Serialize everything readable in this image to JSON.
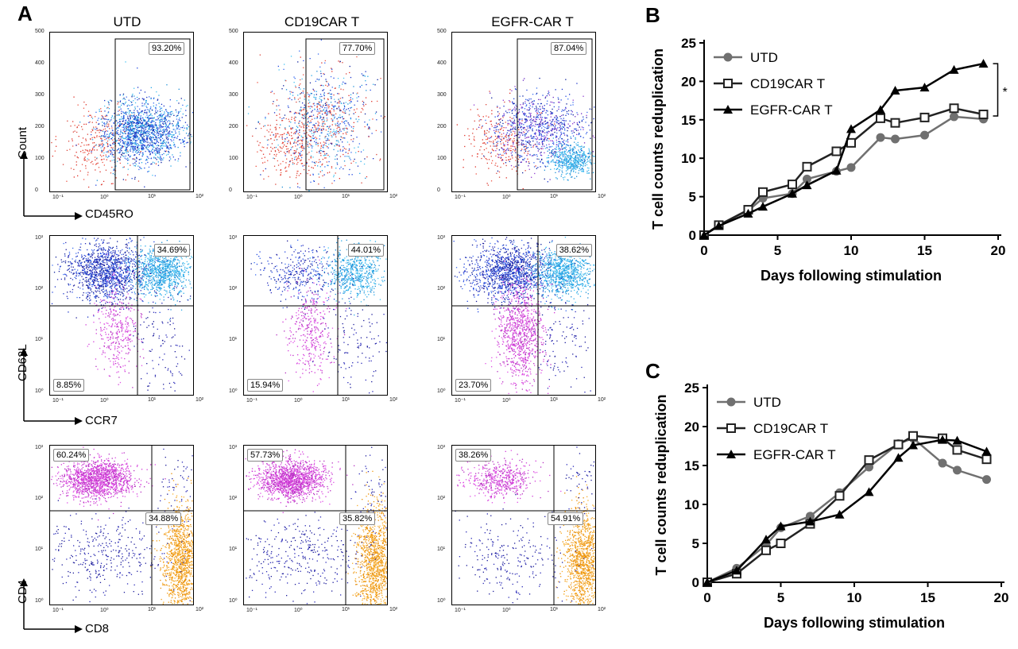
{
  "panel_labels": [
    "A",
    "B",
    "C"
  ],
  "flow": {
    "columns": [
      "UTD",
      "CD19CAR T",
      "EGFR-CAR T"
    ],
    "rows": [
      {
        "id": "cd45ro",
        "x_axis": "CD45RO",
        "y_axis": "Count",
        "type": "gate",
        "pcts": [
          [
            "93.20%"
          ],
          [
            "77.70%"
          ],
          [
            "87.04%"
          ]
        ],
        "yticks": [
          "500",
          "400",
          "300",
          "200",
          "100",
          "0"
        ],
        "xticks": [
          "10⁻¹",
          "10⁰",
          "10¹",
          "10²"
        ]
      },
      {
        "id": "ccr7",
        "x_axis": "CCR7",
        "y_axis": "CD62L",
        "type": "quad",
        "pcts": [
          [
            "34.69%",
            "8.85%"
          ],
          [
            "44.01%",
            "15.94%"
          ],
          [
            "38.62%",
            "23.70%"
          ]
        ],
        "yticks": [
          "10³",
          "10²",
          "10¹",
          "10⁰"
        ],
        "xticks": [
          "10⁻¹",
          "10⁰",
          "10¹",
          "10²"
        ]
      },
      {
        "id": "cd4cd8",
        "x_axis": "CD8",
        "y_axis": "CD4",
        "type": "quad2",
        "pcts": [
          [
            "60.24%",
            "34.88%"
          ],
          [
            "57.73%",
            "35.82%"
          ],
          [
            "38.26%",
            "54.91%"
          ]
        ],
        "yticks": [
          "10³",
          "10²",
          "10¹",
          "10⁰"
        ],
        "xticks": [
          "10⁻¹",
          "10⁰",
          "10¹",
          "10²"
        ]
      }
    ]
  },
  "chart_data": [
    {
      "panel": "B",
      "type": "line",
      "xlabel": "Days following stimulation",
      "ylabel": "T cell counts reduplication",
      "xlim": [
        0,
        20
      ],
      "ylim": [
        0,
        25
      ],
      "xticks": [
        0,
        5,
        10,
        15,
        20
      ],
      "yticks": [
        0,
        5,
        10,
        15,
        20,
        25
      ],
      "annotation": "*",
      "legend_position": "top-left",
      "series": [
        {
          "name": "UTD",
          "marker": "circle",
          "color": "#707070",
          "x": [
            0,
            1,
            3,
            4,
            6,
            7,
            9,
            10,
            12,
            13,
            15,
            17,
            19
          ],
          "y": [
            0,
            1.3,
            3.2,
            4.8,
            5.4,
            7.3,
            8.3,
            8.8,
            12.7,
            12.5,
            13.0,
            15.4,
            15.1
          ]
        },
        {
          "name": "CD19CAR T",
          "marker": "square",
          "color": "#222222",
          "x": [
            0,
            1,
            3,
            4,
            6,
            7,
            9,
            10,
            12,
            13,
            15,
            17,
            19
          ],
          "y": [
            0,
            1.3,
            3.3,
            5.6,
            6.6,
            8.9,
            10.9,
            12.0,
            15.2,
            14.6,
            15.3,
            16.5,
            15.7
          ]
        },
        {
          "name": "EGFR-CAR T",
          "marker": "triangle",
          "color": "#000000",
          "x": [
            0,
            1,
            3,
            4,
            6,
            7,
            9,
            10,
            12,
            13,
            15,
            17,
            19
          ],
          "y": [
            0,
            1.2,
            2.8,
            3.7,
            5.4,
            6.5,
            8.4,
            13.8,
            16.3,
            18.8,
            19.2,
            21.5,
            22.3
          ]
        }
      ]
    },
    {
      "panel": "C",
      "type": "line",
      "xlabel": "Days following stimulation",
      "ylabel": "T cell counts reduplication",
      "xlim": [
        0,
        20
      ],
      "ylim": [
        0,
        25
      ],
      "xticks": [
        0,
        5,
        10,
        15,
        20
      ],
      "yticks": [
        0,
        5,
        10,
        15,
        20,
        25
      ],
      "legend_position": "top-left",
      "series": [
        {
          "name": "UTD",
          "marker": "circle",
          "color": "#707070",
          "x": [
            0,
            2,
            4,
            5,
            7,
            9,
            11,
            13,
            14,
            16,
            17,
            19
          ],
          "y": [
            0,
            1.8,
            4.8,
            7.0,
            8.5,
            11.5,
            14.8,
            17.8,
            18.5,
            15.3,
            14.4,
            13.2
          ]
        },
        {
          "name": "CD19CAR T",
          "marker": "square",
          "color": "#222222",
          "x": [
            0,
            2,
            4,
            5,
            7,
            9,
            11,
            13,
            14,
            16,
            17,
            19
          ],
          "y": [
            0,
            1.1,
            4.1,
            5.0,
            7.5,
            11.1,
            15.7,
            17.7,
            18.8,
            18.5,
            17.0,
            15.8
          ]
        },
        {
          "name": "EGFR-CAR T",
          "marker": "triangle",
          "color": "#000000",
          "x": [
            0,
            2,
            4,
            5,
            7,
            9,
            11,
            13,
            14,
            16,
            17,
            19
          ],
          "y": [
            0,
            1.5,
            5.5,
            7.2,
            7.8,
            8.7,
            11.6,
            16.0,
            17.6,
            18.3,
            18.2,
            16.8
          ]
        }
      ]
    }
  ]
}
